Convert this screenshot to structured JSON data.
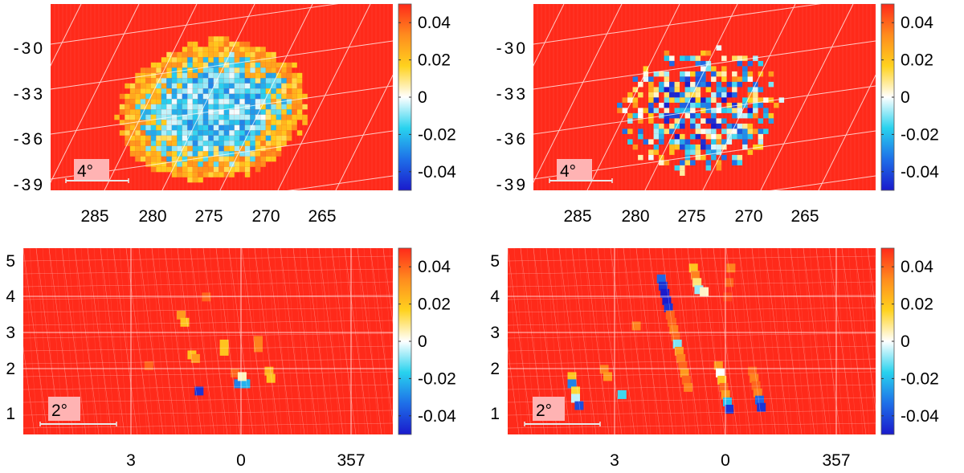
{
  "colors": {
    "background": "#ff2a1a",
    "grid": "#ffffff",
    "scale_box": "#ffb3b3",
    "colormap": [
      "#1a1acc",
      "#1e6fe8",
      "#28d2ee",
      "#ffffff",
      "#ffd21e",
      "#ff8c1e",
      "#ff2a1a"
    ]
  },
  "chart_data": [
    {
      "type": "heatmap",
      "panel": "top-left",
      "x_ticks": [
        "285",
        "280",
        "275",
        "270",
        "265"
      ],
      "y_ticks": [
        "-30",
        "-33",
        "-36",
        "-39"
      ],
      "colorbar": {
        "range": [
          -0.05,
          0.05
        ],
        "ticks": [
          "0.04",
          "0.02",
          "0",
          "-0.02",
          "-0.04"
        ]
      },
      "scale_bar": "4°",
      "pattern": "ellipse",
      "ellipse": {
        "center": [
          276.5,
          -33.5
        ],
        "semi_axes_deg": [
          8.2,
          4.9
        ]
      },
      "core_value": -0.015,
      "rim_value": 0.02
    },
    {
      "type": "heatmap",
      "panel": "top-right",
      "x_ticks": [
        "285",
        "280",
        "275",
        "270",
        "265"
      ],
      "y_ticks": [
        "-30",
        "-33",
        "-36",
        "-39"
      ],
      "colorbar": {
        "range": [
          -0.05,
          0.05
        ],
        "ticks": [
          "0.04",
          "0.02",
          "0",
          "-0.02",
          "-0.04"
        ]
      },
      "scale_bar": "4°",
      "pattern": "ellipse-sparse",
      "ellipse": {
        "center": [
          276.0,
          -33.5
        ],
        "semi_axes_deg": [
          7.2,
          4.4
        ]
      },
      "core_value": -0.018,
      "rim_value": 0.025
    },
    {
      "type": "heatmap",
      "panel": "bottom-left",
      "x_ticks": [
        "3",
        "0",
        "357"
      ],
      "y_ticks": [
        "5",
        "4",
        "3",
        "2",
        "1"
      ],
      "colorbar": {
        "range": [
          -0.05,
          0.05
        ],
        "ticks": [
          "0.04",
          "0.02",
          "0",
          "-0.02",
          "-0.04"
        ]
      },
      "scale_bar": "2°",
      "pattern": "cells",
      "cells": [
        {
          "l": 2.5,
          "b": 2.1,
          "v": 0.04
        },
        {
          "l": 1.6,
          "b": 3.5,
          "v": 0.03
        },
        {
          "l": 1.5,
          "b": 3.3,
          "v": 0.02
        },
        {
          "l": 0.9,
          "b": 4.0,
          "v": 0.04
        },
        {
          "l": 1.3,
          "b": 2.4,
          "v": 0.02
        },
        {
          "l": 1.2,
          "b": 2.3,
          "v": 0.03
        },
        {
          "l": 0.4,
          "b": 2.5,
          "v": 0.02
        },
        {
          "l": 0.4,
          "b": 2.7,
          "v": 0.02
        },
        {
          "l": 1.1,
          "b": 1.4,
          "v": -0.045
        },
        {
          "l": 0.1,
          "b": 1.9,
          "v": 0.04
        },
        {
          "l": 0.0,
          "b": 1.6,
          "v": -0.03
        },
        {
          "l": -0.2,
          "b": 1.6,
          "v": -0.022
        },
        {
          "l": -0.1,
          "b": 1.8,
          "v": 0.005
        },
        {
          "l": -0.55,
          "b": 2.8,
          "v": 0.035
        },
        {
          "l": -0.55,
          "b": 2.6,
          "v": 0.035
        },
        {
          "l": -0.85,
          "b": 1.95,
          "v": 0.025
        },
        {
          "l": -0.9,
          "b": 1.75,
          "v": 0.02
        }
      ]
    },
    {
      "type": "heatmap",
      "panel": "bottom-right",
      "x_ticks": [
        "3",
        "0",
        "357"
      ],
      "y_ticks": [
        "5",
        "4",
        "3",
        "2",
        "1"
      ],
      "colorbar": {
        "range": [
          -0.05,
          0.05
        ],
        "ticks": [
          "0.04",
          "0.02",
          "0",
          "-0.02",
          "-0.04"
        ]
      },
      "scale_bar": "2°",
      "pattern": "cells",
      "cells": [
        {
          "l": 4.2,
          "b": 1.8,
          "v": 0.02
        },
        {
          "l": 4.2,
          "b": 1.6,
          "v": -0.03
        },
        {
          "l": 4.1,
          "b": 1.4,
          "v": 0.015
        },
        {
          "l": 4.1,
          "b": 1.2,
          "v": -0.005
        },
        {
          "l": 4.0,
          "b": 1.0,
          "v": -0.04
        },
        {
          "l": 3.3,
          "b": 2.0,
          "v": 0.035
        },
        {
          "l": 3.2,
          "b": 1.8,
          "v": 0.03
        },
        {
          "l": 2.8,
          "b": 1.3,
          "v": -0.015
        },
        {
          "l": 2.4,
          "b": 3.2,
          "v": 0.035
        },
        {
          "l": 1.7,
          "b": 4.5,
          "v": -0.035
        },
        {
          "l": 1.65,
          "b": 4.3,
          "v": -0.045
        },
        {
          "l": 1.6,
          "b": 4.1,
          "v": -0.05
        },
        {
          "l": 1.55,
          "b": 3.9,
          "v": -0.05
        },
        {
          "l": 1.5,
          "b": 3.7,
          "v": -0.045
        },
        {
          "l": 1.45,
          "b": 3.5,
          "v": 0.04
        },
        {
          "l": 1.4,
          "b": 3.3,
          "v": 0.04
        },
        {
          "l": 1.35,
          "b": 3.1,
          "v": 0.035
        },
        {
          "l": 1.3,
          "b": 2.9,
          "v": 0.04
        },
        {
          "l": 1.25,
          "b": 2.7,
          "v": -0.01
        },
        {
          "l": 1.2,
          "b": 2.5,
          "v": 0.03
        },
        {
          "l": 1.15,
          "b": 2.3,
          "v": 0.035
        },
        {
          "l": 1.1,
          "b": 2.1,
          "v": 0.04
        },
        {
          "l": 1.05,
          "b": 1.9,
          "v": 0.03
        },
        {
          "l": 1.0,
          "b": 1.7,
          "v": 0.04
        },
        {
          "l": 0.95,
          "b": 1.5,
          "v": 0.035
        },
        {
          "l": 0.8,
          "b": 4.8,
          "v": 0.02
        },
        {
          "l": 0.75,
          "b": 4.6,
          "v": 0.035
        },
        {
          "l": 0.7,
          "b": 4.4,
          "v": 0.01
        },
        {
          "l": 0.65,
          "b": 4.2,
          "v": -0.008
        },
        {
          "l": 0.5,
          "b": 4.15,
          "v": 0.004
        },
        {
          "l": -0.25,
          "b": 4.8,
          "v": 0.035
        },
        {
          "l": -0.2,
          "b": 4.4,
          "v": 0.04
        },
        {
          "l": -0.15,
          "b": 4.0,
          "v": 0.045
        },
        {
          "l": 0.1,
          "b": 2.1,
          "v": 0.03
        },
        {
          "l": 0.05,
          "b": 1.9,
          "v": 0.0
        },
        {
          "l": 0.0,
          "b": 1.7,
          "v": 0.02
        },
        {
          "l": -0.05,
          "b": 1.5,
          "v": 0.04
        },
        {
          "l": -0.1,
          "b": 1.3,
          "v": 0.03
        },
        {
          "l": -0.15,
          "b": 1.1,
          "v": -0.02
        },
        {
          "l": -0.2,
          "b": 0.9,
          "v": -0.045
        },
        {
          "l": -0.85,
          "b": 1.95,
          "v": 0.04
        },
        {
          "l": -0.9,
          "b": 1.75,
          "v": 0.035
        },
        {
          "l": -0.95,
          "b": 1.55,
          "v": 0.04
        },
        {
          "l": -1.0,
          "b": 1.35,
          "v": 0.035
        },
        {
          "l": -1.05,
          "b": 1.15,
          "v": -0.035
        },
        {
          "l": -1.1,
          "b": 0.95,
          "v": -0.045
        }
      ]
    }
  ]
}
